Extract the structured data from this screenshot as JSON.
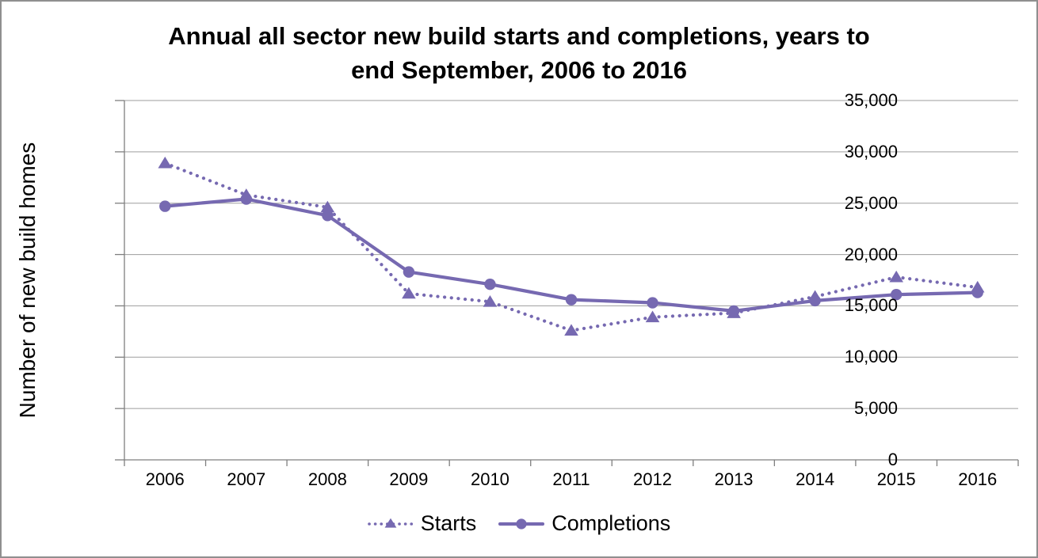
{
  "chart_data": {
    "type": "line",
    "title": "Annual all sector new build starts and completions, years to end September, 2006 to 2016",
    "title_lines": [
      "Annual all sector new build starts and completions, years to",
      "end September, 2006 to 2016"
    ],
    "xlabel": "",
    "ylabel": "Number of new build homes",
    "categories": [
      "2006",
      "2007",
      "2008",
      "2009",
      "2010",
      "2011",
      "2012",
      "2013",
      "2014",
      "2015",
      "2016"
    ],
    "series": [
      {
        "name": "Starts",
        "marker": "triangle",
        "line_style": "dotted",
        "values": [
          28900,
          25800,
          24600,
          16200,
          15400,
          12600,
          13900,
          14300,
          15900,
          17800,
          16800
        ]
      },
      {
        "name": "Completions",
        "marker": "circle",
        "line_style": "solid",
        "values": [
          24700,
          25400,
          23800,
          18300,
          17100,
          15600,
          15300,
          14500,
          15500,
          16100,
          16300
        ]
      }
    ],
    "ylim": [
      0,
      35000
    ],
    "y_tick_step": 5000,
    "y_tick_labels": [
      "0",
      "5,000",
      "10,000",
      "15,000",
      "20,000",
      "25,000",
      "30,000",
      "35,000"
    ],
    "grid": "horizontal",
    "legend_position": "bottom"
  },
  "colors": {
    "series": "#7669b1",
    "gridline": "#9d9d9d",
    "axis": "#7f7f7f",
    "text": "#000000",
    "background": "#ffffff",
    "border": "#8f8f8f"
  }
}
